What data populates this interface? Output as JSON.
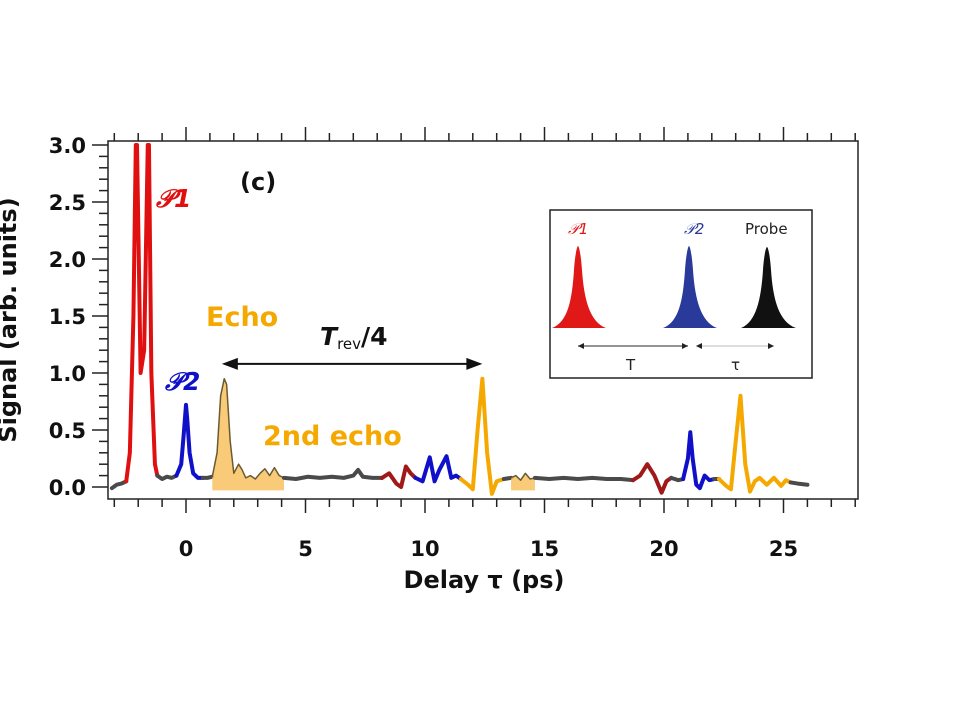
{
  "chart_data": {
    "type": "line",
    "panel_label": "(c)",
    "xlabel": "Delay τ (ps)",
    "ylabel": "Signal (arb. units)",
    "xlim": [
      -3.3,
      28.0
    ],
    "ylim": [
      -0.1,
      3.0
    ],
    "x_ticks": [
      0,
      5,
      10,
      15,
      20,
      25
    ],
    "x_tick_labels": [
      "0",
      "5",
      "10",
      "15",
      "20",
      "25"
    ],
    "y_ticks": [
      0.0,
      0.5,
      1.0,
      1.5,
      2.0,
      2.5,
      3.0
    ],
    "y_tick_labels": [
      "0.0",
      "0.5",
      "1.0",
      "1.5",
      "2.0",
      "2.5",
      "3.0"
    ],
    "grid": false,
    "colors": {
      "baseline": "#4a4a4a",
      "p1": "#e01010",
      "p2": "#1010c8",
      "echo": "#f5a800",
      "echo_fill": "#f8c56a",
      "revival_red": "#a01818",
      "text": "#111111"
    },
    "series": [
      {
        "name": "baseline-start",
        "color_key": "baseline",
        "x": [
          -3.1,
          -2.9,
          -2.7,
          -2.5
        ],
        "y": [
          -0.01,
          0.02,
          0.03,
          0.05
        ]
      },
      {
        "name": "P1",
        "color_key": "p1",
        "x": [
          -2.5,
          -2.35,
          -2.2,
          -2.1,
          -2.05,
          -1.9,
          -1.75,
          -1.6,
          -1.55,
          -1.45,
          -1.3,
          -1.2
        ],
        "y": [
          0.05,
          0.3,
          1.5,
          3.0,
          3.0,
          1.0,
          1.2,
          3.0,
          3.0,
          1.0,
          0.2,
          0.1
        ]
      },
      {
        "name": "baseline-2",
        "color_key": "baseline",
        "x": [
          -1.2,
          -1.0,
          -0.8,
          -0.6,
          -0.4
        ],
        "y": [
          0.1,
          0.07,
          0.09,
          0.08,
          0.1
        ]
      },
      {
        "name": "P2",
        "color_key": "p2",
        "x": [
          -0.4,
          -0.2,
          -0.1,
          0.0,
          0.05,
          0.15,
          0.3,
          0.5,
          0.7
        ],
        "y": [
          0.1,
          0.2,
          0.45,
          0.72,
          0.6,
          0.3,
          0.12,
          0.08,
          0.08
        ]
      },
      {
        "name": "baseline-3",
        "color_key": "baseline",
        "x": [
          0.7,
          0.9,
          1.1
        ],
        "y": [
          0.08,
          0.08,
          0.09
        ]
      },
      {
        "name": "Echo",
        "color_key": "echo",
        "fill": true,
        "x": [
          1.1,
          1.3,
          1.45,
          1.6,
          1.7,
          1.85,
          2.0,
          2.2,
          2.35,
          2.5,
          2.7,
          2.9,
          3.1,
          3.3,
          3.5,
          3.7,
          3.9,
          4.1
        ],
        "y": [
          0.09,
          0.3,
          0.8,
          0.95,
          0.9,
          0.4,
          0.12,
          0.2,
          0.15,
          0.08,
          0.1,
          0.07,
          0.12,
          0.16,
          0.1,
          0.17,
          0.1,
          0.08
        ]
      },
      {
        "name": "baseline-4",
        "color_key": "baseline",
        "x": [
          4.1,
          4.6,
          5.1,
          5.6,
          6.1,
          6.6,
          7.0,
          7.2,
          7.4,
          7.8,
          8.2
        ],
        "y": [
          0.08,
          0.07,
          0.09,
          0.08,
          0.09,
          0.08,
          0.1,
          0.15,
          0.09,
          0.08,
          0.08
        ]
      },
      {
        "name": "revival-red-1",
        "color_key": "revival_red",
        "x": [
          8.2,
          8.5,
          8.8,
          9.0,
          9.2,
          9.4,
          9.6
        ],
        "y": [
          0.08,
          0.12,
          0.03,
          0.0,
          0.18,
          0.12,
          0.08
        ]
      },
      {
        "name": "revival-blue-1",
        "color_key": "p2",
        "x": [
          9.6,
          9.9,
          10.2,
          10.4,
          10.6,
          10.9,
          11.1,
          11.3,
          11.5
        ],
        "y": [
          0.08,
          0.05,
          0.26,
          0.05,
          0.15,
          0.27,
          0.08,
          0.1,
          0.07
        ]
      },
      {
        "name": "revival-orange-1",
        "color_key": "echo",
        "x": [
          11.5,
          11.8,
          12.0,
          12.2,
          12.4,
          12.6,
          12.8,
          13.0,
          13.3
        ],
        "y": [
          0.07,
          0.02,
          -0.02,
          0.5,
          0.95,
          0.3,
          -0.06,
          0.05,
          0.07
        ]
      },
      {
        "name": "baseline-5",
        "color_key": "baseline",
        "x": [
          13.3,
          13.6
        ],
        "y": [
          0.07,
          0.08
        ]
      },
      {
        "name": "second-echo-fill",
        "color_key": "echo",
        "fill": true,
        "x": [
          13.6,
          13.8,
          14.0,
          14.2,
          14.4,
          14.6
        ],
        "y": [
          0.08,
          0.1,
          0.06,
          0.12,
          0.07,
          0.08
        ]
      },
      {
        "name": "baseline-6",
        "color_key": "baseline",
        "x": [
          14.6,
          15.2,
          15.8,
          16.4,
          17.0,
          17.6,
          18.2,
          18.7
        ],
        "y": [
          0.08,
          0.07,
          0.08,
          0.07,
          0.08,
          0.07,
          0.07,
          0.06
        ]
      },
      {
        "name": "revival-red-2",
        "color_key": "revival_red",
        "x": [
          18.7,
          19.0,
          19.3,
          19.6,
          19.9,
          20.1,
          20.3
        ],
        "y": [
          0.06,
          0.1,
          0.2,
          0.1,
          -0.05,
          0.05,
          0.08
        ]
      },
      {
        "name": "baseline-7",
        "color_key": "baseline",
        "x": [
          20.3,
          20.6,
          20.8
        ],
        "y": [
          0.08,
          0.06,
          0.07
        ]
      },
      {
        "name": "revival-blue-2",
        "color_key": "p2",
        "x": [
          20.8,
          21.0,
          21.1,
          21.2,
          21.35,
          21.5,
          21.7,
          21.9,
          22.1
        ],
        "y": [
          0.07,
          0.25,
          0.48,
          0.25,
          0.02,
          -0.01,
          0.1,
          0.06,
          0.07
        ]
      },
      {
        "name": "baseline-8",
        "color_key": "baseline",
        "x": [
          22.1,
          22.3
        ],
        "y": [
          0.07,
          0.07
        ]
      },
      {
        "name": "revival-orange-2",
        "color_key": "echo",
        "x": [
          22.3,
          22.6,
          22.8,
          23.0,
          23.2,
          23.4,
          23.6,
          23.8,
          24.0,
          24.3,
          24.6,
          24.9,
          25.1,
          25.3
        ],
        "y": [
          0.07,
          0.01,
          -0.02,
          0.4,
          0.8,
          0.2,
          -0.04,
          0.05,
          0.08,
          0.02,
          0.08,
          0.01,
          0.06,
          0.04
        ]
      },
      {
        "name": "baseline-end",
        "color_key": "baseline",
        "x": [
          25.3,
          25.6,
          26.0
        ],
        "y": [
          0.04,
          0.03,
          0.02
        ]
      }
    ],
    "annotations": {
      "p1_label": "𝒫1",
      "p2_label": "𝒫2",
      "echo_label": "Echo",
      "second_echo_label": "2nd echo",
      "trev_label_main": "T",
      "trev_label_sub": "rev",
      "trev_label_tail": "/4",
      "trev_arrow_from": 1.5,
      "trev_arrow_to": 12.4,
      "trev_arrow_y": 1.08
    },
    "inset": {
      "labels": {
        "p1": "𝒫1",
        "p2": "𝒫2",
        "probe": "Probe",
        "T": "T",
        "tau": "τ"
      },
      "pulse_colors": [
        "#e01818",
        "#2a3a9a",
        "#111111"
      ]
    }
  }
}
